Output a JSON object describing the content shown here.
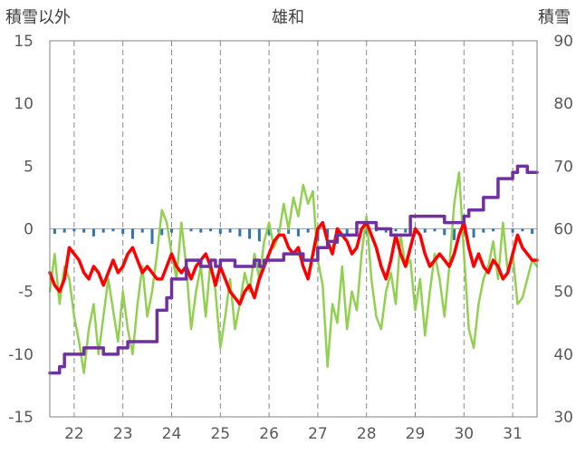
{
  "chart_data": {
    "type": "line",
    "title": "雄和",
    "ylabel_left": "積雪以外",
    "ylabel_right": "積雪",
    "ylim_left": [
      -15,
      15
    ],
    "yticks_left": [
      "15",
      "10",
      "5",
      "0",
      "-5",
      "-10",
      "-15"
    ],
    "ylim_right": [
      30,
      90
    ],
    "yticks_right": [
      "90",
      "80",
      "70",
      "60",
      "50",
      "40",
      "30"
    ],
    "xlim": [
      21.5,
      31.5
    ],
    "xticks": [
      "22",
      "23",
      "24",
      "25",
      "26",
      "27",
      "28",
      "29",
      "30",
      "31"
    ],
    "grid": "dashed-vertical",
    "colors": {
      "temperature": "#ff0000",
      "wind": "#92d050",
      "snow_depth": "#7030a0",
      "precip": "#2e75b6"
    },
    "series": [
      {
        "key": "temperature",
        "axis": "left",
        "style": "line",
        "x": [
          21.5,
          21.6,
          21.7,
          21.8,
          21.9,
          22.0,
          22.1,
          22.2,
          22.3,
          22.4,
          22.5,
          22.6,
          22.7,
          22.8,
          22.9,
          23.0,
          23.1,
          23.2,
          23.3,
          23.4,
          23.5,
          23.6,
          23.7,
          23.8,
          23.9,
          24.0,
          24.1,
          24.2,
          24.3,
          24.4,
          24.5,
          24.6,
          24.7,
          24.8,
          24.9,
          25.0,
          25.1,
          25.2,
          25.3,
          25.4,
          25.5,
          25.6,
          25.7,
          25.8,
          25.9,
          26.0,
          26.1,
          26.2,
          26.3,
          26.4,
          26.5,
          26.6,
          26.7,
          26.8,
          26.9,
          27.0,
          27.1,
          27.2,
          27.3,
          27.4,
          27.5,
          27.6,
          27.7,
          27.8,
          27.9,
          28.0,
          28.1,
          28.2,
          28.3,
          28.4,
          28.5,
          28.6,
          28.7,
          28.8,
          28.9,
          29.0,
          29.1,
          29.2,
          29.3,
          29.4,
          29.5,
          29.6,
          29.7,
          29.8,
          29.9,
          30.0,
          30.1,
          30.2,
          30.3,
          30.4,
          30.5,
          30.6,
          30.7,
          30.8,
          30.9,
          31.0,
          31.1,
          31.2,
          31.3,
          31.4,
          31.5
        ],
        "values": [
          -3.5,
          -4.5,
          -5.0,
          -4.0,
          -1.5,
          -2.0,
          -2.5,
          -3.5,
          -4.0,
          -3.0,
          -3.5,
          -4.5,
          -3.5,
          -2.5,
          -3.5,
          -3.0,
          -2.0,
          -1.5,
          -2.5,
          -3.5,
          -3.0,
          -3.5,
          -4.0,
          -4.0,
          -3.0,
          -2.0,
          -3.0,
          -3.5,
          -3.0,
          -4.0,
          -3.0,
          -2.5,
          -2.0,
          -3.0,
          -4.5,
          -3.0,
          -4.0,
          -5.0,
          -5.5,
          -6.0,
          -5.0,
          -4.5,
          -5.5,
          -4.0,
          -3.0,
          -2.0,
          -1.0,
          -0.5,
          -0.5,
          -1.5,
          -2.0,
          -1.5,
          -3.0,
          -4.0,
          -2.0,
          0.0,
          0.5,
          -1.0,
          -2.0,
          0.0,
          -0.5,
          -1.0,
          -2.0,
          -1.5,
          0.0,
          0.5,
          -0.5,
          -1.5,
          -3.0,
          -4.0,
          -2.5,
          -0.5,
          -2.0,
          -3.0,
          -1.5,
          0.0,
          -0.5,
          -2.0,
          -3.0,
          -2.5,
          -2.0,
          -2.5,
          -3.0,
          -2.0,
          -0.5,
          0.5,
          -1.5,
          -3.0,
          -2.0,
          -3.0,
          -3.5,
          -2.5,
          -3.0,
          -4.0,
          -3.5,
          -2.0,
          -0.5,
          -1.5,
          -2.0,
          -2.5,
          -2.5
        ]
      },
      {
        "key": "wind",
        "axis": "left",
        "style": "line",
        "x": [
          21.5,
          21.6,
          21.7,
          21.8,
          21.9,
          22.0,
          22.1,
          22.2,
          22.3,
          22.4,
          22.5,
          22.6,
          22.7,
          22.8,
          22.9,
          23.0,
          23.1,
          23.2,
          23.3,
          23.4,
          23.5,
          23.6,
          23.7,
          23.8,
          23.9,
          24.0,
          24.1,
          24.2,
          24.3,
          24.4,
          24.5,
          24.6,
          24.7,
          24.8,
          24.9,
          25.0,
          25.1,
          25.2,
          25.3,
          25.4,
          25.5,
          25.6,
          25.7,
          25.8,
          25.9,
          26.0,
          26.1,
          26.2,
          26.3,
          26.4,
          26.5,
          26.6,
          26.7,
          26.8,
          26.9,
          27.0,
          27.1,
          27.2,
          27.3,
          27.4,
          27.5,
          27.6,
          27.7,
          27.8,
          27.9,
          28.0,
          28.1,
          28.2,
          28.3,
          28.4,
          28.5,
          28.6,
          28.7,
          28.8,
          28.9,
          29.0,
          29.1,
          29.2,
          29.3,
          29.4,
          29.5,
          29.6,
          29.7,
          29.8,
          29.9,
          30.0,
          30.1,
          30.2,
          30.3,
          30.4,
          30.5,
          30.6,
          30.7,
          30.8,
          30.9,
          31.0,
          31.1,
          31.2,
          31.3,
          31.4,
          31.5
        ],
        "values": [
          -5.0,
          -2.0,
          -6.0,
          -3.0,
          -4.0,
          -7.0,
          -9.0,
          -11.5,
          -8.0,
          -6.0,
          -10.0,
          -7.0,
          -4.0,
          -6.5,
          -9.0,
          -5.0,
          -8.0,
          -10.0,
          -6.0,
          -3.0,
          -7.0,
          -5.0,
          -2.0,
          1.5,
          0.5,
          -2.0,
          -4.0,
          0.5,
          -3.0,
          -8.0,
          -5.0,
          -3.0,
          -7.0,
          -2.5,
          -5.0,
          -9.5,
          -7.0,
          -4.0,
          -8.0,
          -6.0,
          -3.5,
          -5.0,
          -2.0,
          -4.0,
          -1.0,
          0.5,
          -1.5,
          -0.5,
          2.0,
          0.0,
          2.5,
          1.0,
          3.5,
          2.0,
          3.0,
          -2.5,
          -4.5,
          -11.0,
          -6.0,
          -7.5,
          -3.0,
          -8.0,
          -5.0,
          -6.5,
          -2.0,
          1.0,
          -4.0,
          -7.0,
          -8.0,
          -5.0,
          -3.5,
          -6.0,
          -0.5,
          -3.0,
          -2.5,
          -6.5,
          -4.0,
          -8.5,
          -5.0,
          -2.0,
          -4.0,
          -7.0,
          -3.0,
          2.0,
          4.5,
          -2.0,
          -8.0,
          -9.5,
          -6.0,
          -4.0,
          -3.0,
          -1.0,
          -4.0,
          0.5,
          -3.5,
          -2.0,
          -6.0,
          -5.5,
          -4.0,
          -2.5,
          -3.0
        ]
      },
      {
        "key": "snow_depth",
        "axis": "right",
        "style": "step",
        "x": [
          21.5,
          21.7,
          21.8,
          22.0,
          22.2,
          22.4,
          22.6,
          22.7,
          22.9,
          23.0,
          23.1,
          23.6,
          23.7,
          23.8,
          23.9,
          24.0,
          24.2,
          24.3,
          24.5,
          24.6,
          24.8,
          24.9,
          25.0,
          25.3,
          25.5,
          25.7,
          25.8,
          25.9,
          26.0,
          26.3,
          26.5,
          26.7,
          26.9,
          27.0,
          27.2,
          27.4,
          27.6,
          27.8,
          28.0,
          28.2,
          28.3,
          28.5,
          28.7,
          28.9,
          29.2,
          29.6,
          29.8,
          30.0,
          30.1,
          30.3,
          30.4,
          30.7,
          30.8,
          31.0,
          31.1,
          31.3,
          31.5
        ],
        "values": [
          37.0,
          38.0,
          40.0,
          40.0,
          41.0,
          41.0,
          40.0,
          40.0,
          41.0,
          41.0,
          42.0,
          42.0,
          47.0,
          47.0,
          49.0,
          52.0,
          52.0,
          55.0,
          55.0,
          54.0,
          55.0,
          54.0,
          55.0,
          54.0,
          54.0,
          55.0,
          54.0,
          55.0,
          55.0,
          56.0,
          56.0,
          55.0,
          55.0,
          57.0,
          58.0,
          59.0,
          59.0,
          61.0,
          61.0,
          60.0,
          60.0,
          59.0,
          59.0,
          62.0,
          62.0,
          61.0,
          61.0,
          62.0,
          63.0,
          63.0,
          65.0,
          68.0,
          68.0,
          69.0,
          70.0,
          69.0,
          69.0
        ]
      },
      {
        "key": "precip",
        "axis": "left",
        "style": "bar",
        "x": [
          21.6,
          21.8,
          22.0,
          22.2,
          22.4,
          22.6,
          22.8,
          23.0,
          23.2,
          23.4,
          23.6,
          23.8,
          24.0,
          24.2,
          24.4,
          24.6,
          24.8,
          25.0,
          25.2,
          25.4,
          25.6,
          25.8,
          26.0,
          26.2,
          26.4,
          26.6,
          26.8,
          27.0,
          27.2,
          27.4,
          27.6,
          27.8,
          28.0,
          28.2,
          28.4,
          28.6,
          28.8,
          29.0,
          29.2,
          29.4,
          29.6,
          29.8,
          30.0,
          30.2,
          30.4,
          30.6,
          30.8,
          31.0,
          31.2,
          31.4
        ],
        "values": [
          -0.4,
          -0.3,
          -0.2,
          -0.3,
          -0.6,
          -0.3,
          -0.2,
          -0.4,
          -0.8,
          -0.3,
          -1.2,
          -0.5,
          -0.3,
          -0.4,
          -0.2,
          -0.3,
          -0.2,
          -0.4,
          -0.3,
          -0.6,
          -0.8,
          -1.0,
          -0.5,
          -0.3,
          -0.4,
          -0.6,
          -0.3,
          -1.0,
          -0.7,
          -1.2,
          -0.5,
          -0.6,
          -0.4,
          -0.2,
          -0.3,
          -0.2,
          -0.3,
          -0.4,
          -0.3,
          -0.2,
          -0.5,
          -0.9,
          -0.4,
          -0.7,
          -0.3,
          -0.2,
          -0.4,
          -0.3,
          -0.2,
          -0.4
        ]
      }
    ]
  }
}
